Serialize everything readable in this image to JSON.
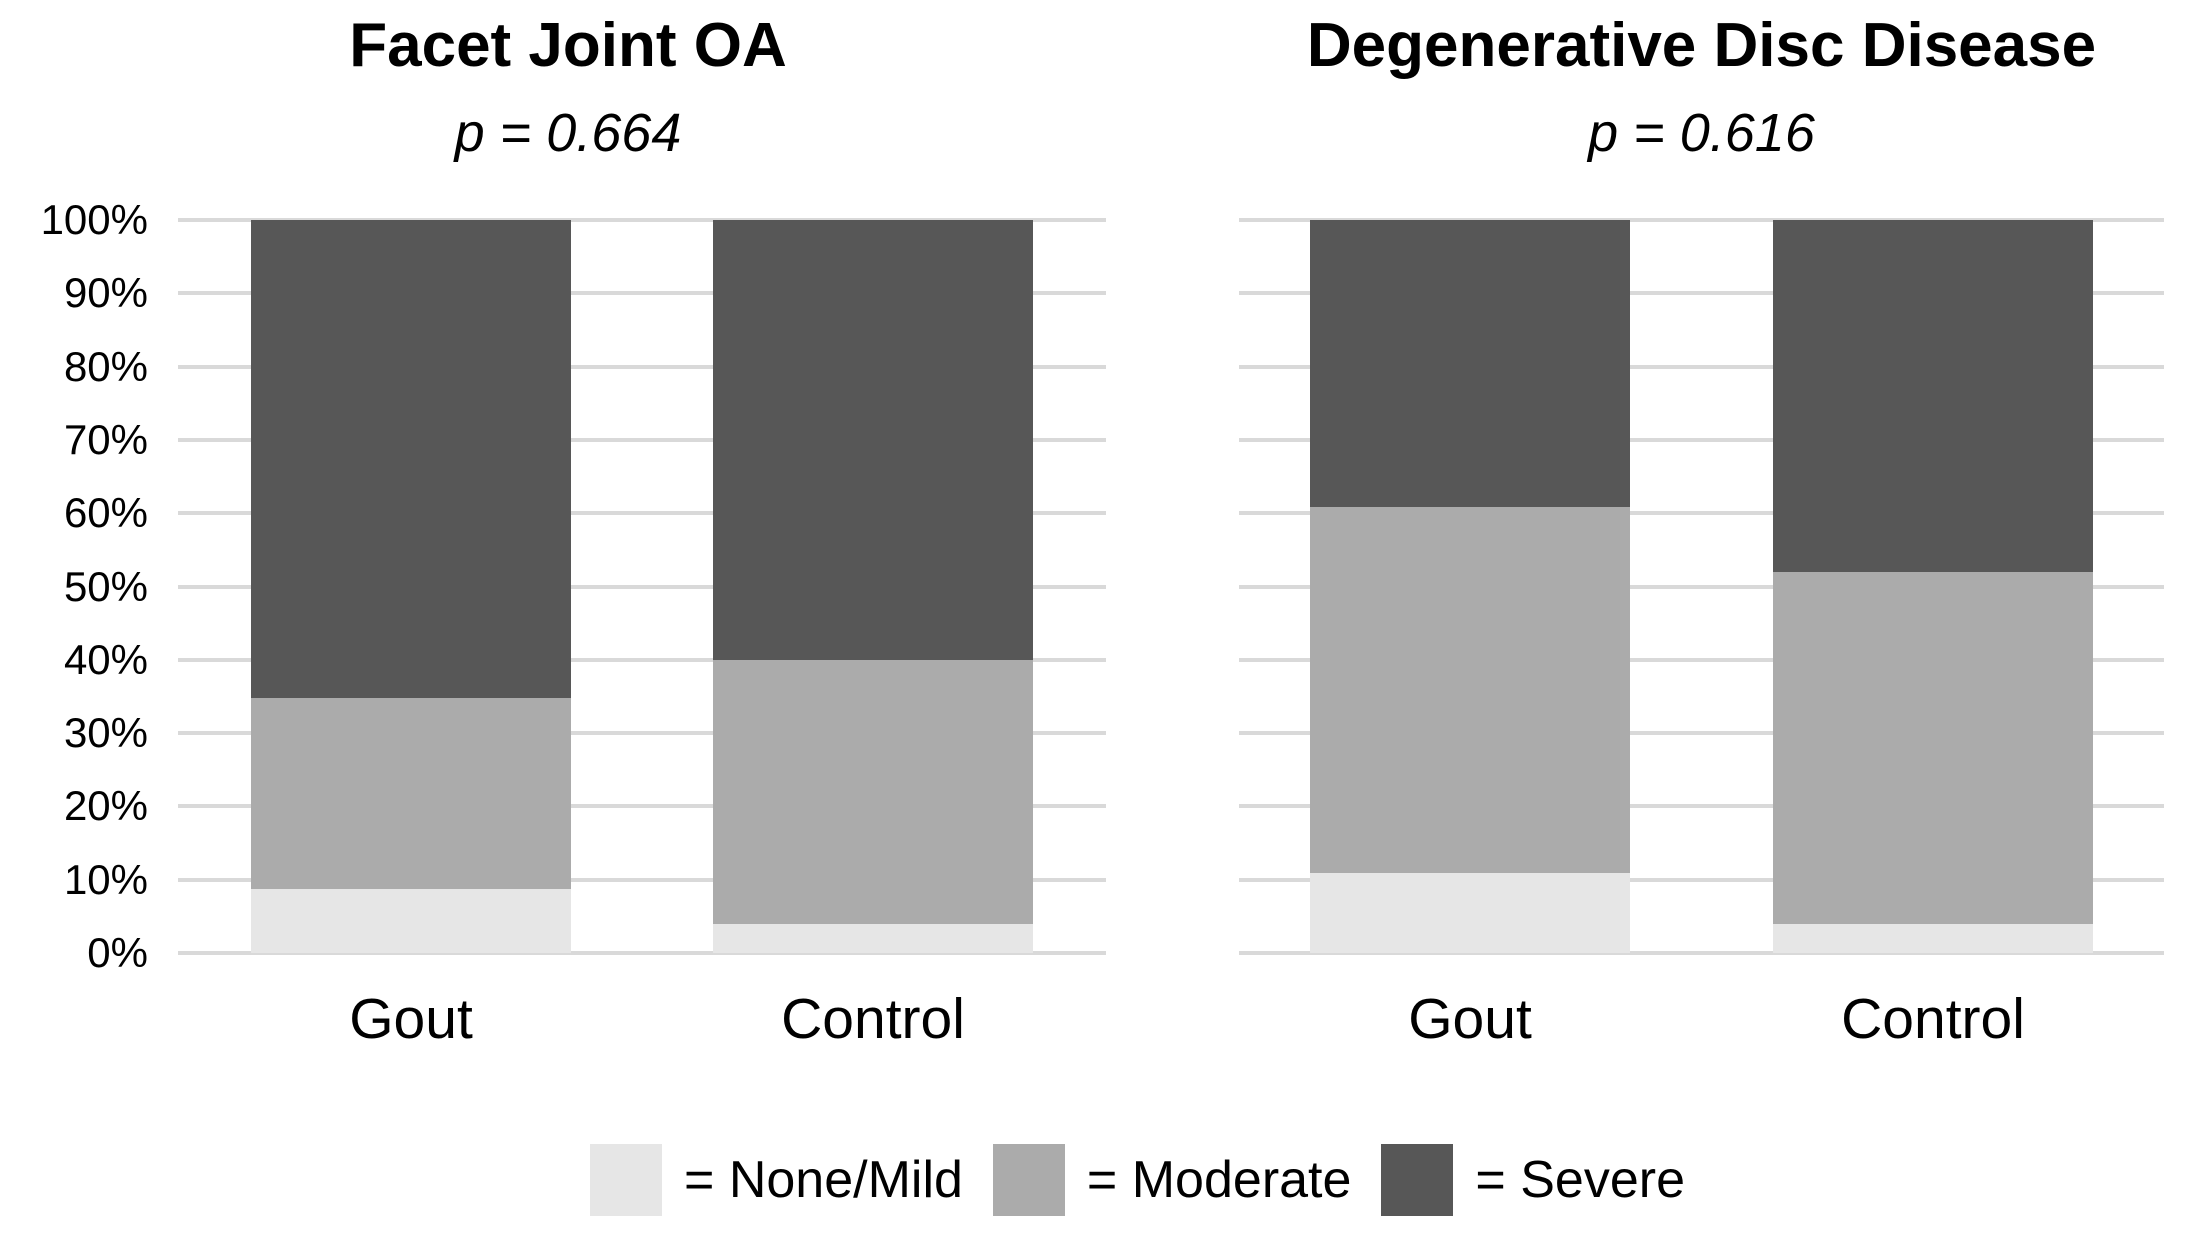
{
  "figure": {
    "background": "#FFFFFF"
  },
  "colors": {
    "severe": "#575757",
    "moderate": "#ABABAB",
    "none_mild": "#E6E6E6",
    "gridline": "#D9D9D9",
    "text": "#000000"
  },
  "y_axis": {
    "tick_labels": [
      "100%",
      "90%",
      "80%",
      "70%",
      "60%",
      "50%",
      "40%",
      "30%",
      "20%",
      "10%",
      "0%"
    ],
    "min": 0,
    "max": 100,
    "step": 10,
    "unit": "%"
  },
  "legend": {
    "items": [
      {
        "label": "= None/Mild",
        "color": "#E6E6E6"
      },
      {
        "label": "= Moderate",
        "color": "#ABABAB"
      },
      {
        "label": "= Severe",
        "color": "#575757"
      }
    ]
  },
  "chart_data": [
    {
      "type": "bar",
      "subtype": "stacked-100pct",
      "title": "Facet Joint OA",
      "p_value_label": "p = 0.664",
      "p_value": 0.664,
      "categories": [
        "Gout",
        "Control"
      ],
      "series": [
        {
          "name": "None/Mild",
          "color": "#E6E6E6",
          "values": [
            8.7,
            4.0
          ]
        },
        {
          "name": "Moderate",
          "color": "#ABABAB",
          "values": [
            26.1,
            36.0
          ]
        },
        {
          "name": "Severe",
          "color": "#575757",
          "values": [
            65.2,
            60.0
          ]
        }
      ],
      "ylabel": "",
      "xlabel": "",
      "ylim": [
        0,
        100
      ],
      "grid": true,
      "legend_position": "bottom"
    },
    {
      "type": "bar",
      "subtype": "stacked-100pct",
      "title": "Degenerative Disc Disease",
      "p_value_label": "p = 0.616",
      "p_value": 0.616,
      "categories": [
        "Gout",
        "Control"
      ],
      "series": [
        {
          "name": "None/Mild",
          "color": "#E6E6E6",
          "values": [
            10.9,
            4.0
          ]
        },
        {
          "name": "Moderate",
          "color": "#ABABAB",
          "values": [
            50.0,
            48.0
          ]
        },
        {
          "name": "Severe",
          "color": "#575757",
          "values": [
            39.1,
            48.0
          ]
        }
      ],
      "ylabel": "",
      "xlabel": "",
      "ylim": [
        0,
        100
      ],
      "grid": true,
      "legend_position": "bottom"
    }
  ]
}
